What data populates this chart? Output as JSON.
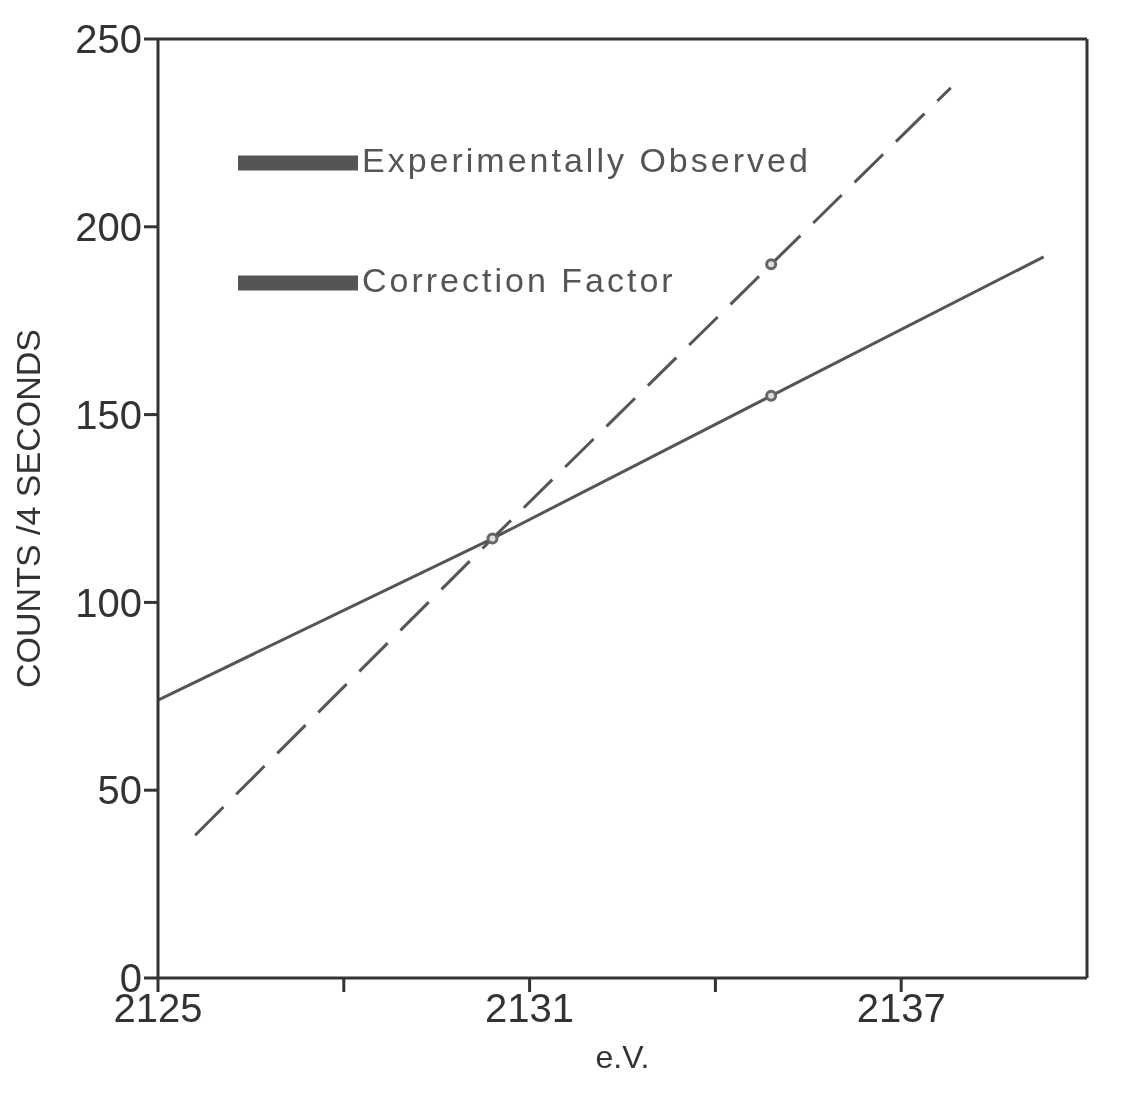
{
  "chart_data": {
    "type": "line",
    "xlabel": "e.V.",
    "ylabel": "COUNTS /4 SECONDS",
    "xlim": [
      2125,
      2140
    ],
    "xticks": [
      2125,
      {
        "value": 2128,
        "label": null
      },
      2131,
      {
        "value": 2134,
        "label": null
      },
      2137
    ],
    "ylim": [
      0,
      250
    ],
    "yticks": [
      0,
      50,
      100,
      150,
      200,
      250
    ],
    "grid": false,
    "legend": "top left",
    "marker": "none",
    "series": [
      {
        "name": "Experimentally Observed",
        "line_style": "solid",
        "color": "#555555",
        "x": [
          2125,
          2130.4,
          2134.9,
          2139.3
        ],
        "values": [
          74,
          117,
          155,
          192
        ]
      },
      {
        "name": "Correction Factor",
        "line_style": "dashed",
        "color": "#555555",
        "x": [
          2125.6,
          2130.4,
          2134.9,
          2137.8
        ],
        "values": [
          38,
          117,
          190,
          237
        ]
      },
      {
        "type": "scatter",
        "marker": "circle",
        "color": "#666666",
        "x": [
          2130.4,
          2134.9,
          2134.9
        ],
        "values": [
          117,
          155,
          190
        ]
      }
    ]
  }
}
